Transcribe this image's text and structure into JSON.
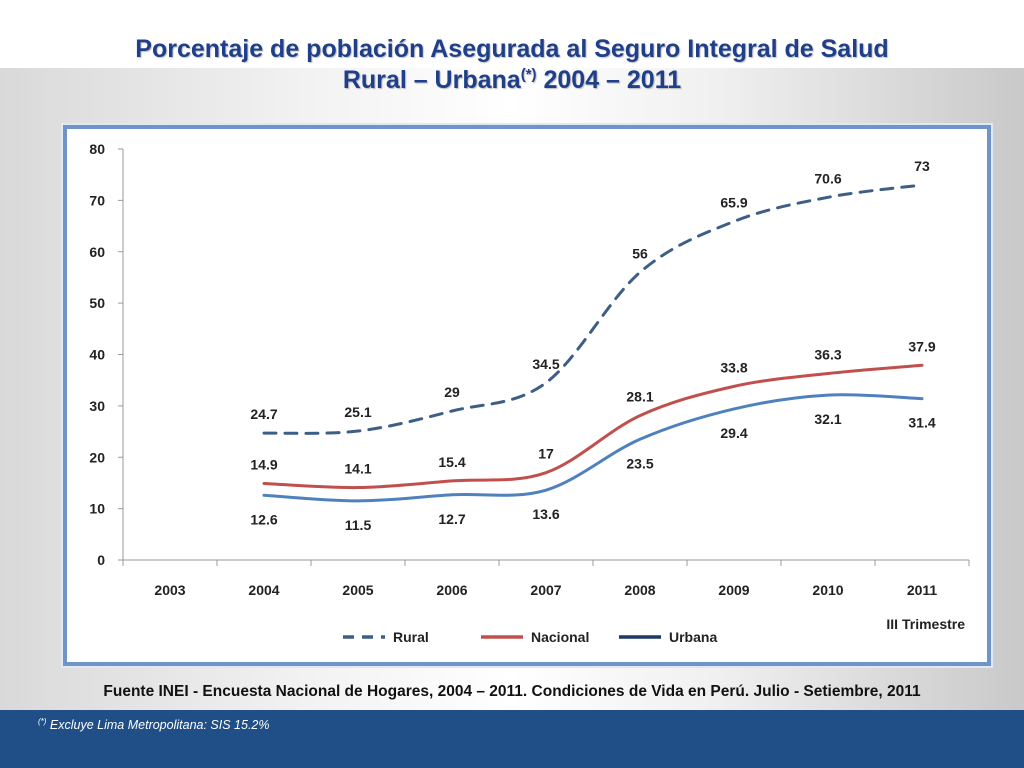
{
  "header": {
    "title_line1": "Porcentaje de población Asegurada al Seguro Integral de Salud",
    "title_line2_main": "Rural – Urbana",
    "title_line2_sup": "(*)",
    "title_line2_tail": " 2004 – 2011"
  },
  "source": "Fuente INEI - Encuesta Nacional de Hogares, 2004 – 2011. Condiciones de Vida en Perú. Julio - Setiembre, 2011",
  "footnote": {
    "marker": "(*)",
    "text": " Excluye Lima Metropolitana: SIS 15.2%"
  },
  "chart_data": {
    "type": "line",
    "title": "Porcentaje de población Asegurada al Seguro Integral de Salud Rural – Urbana (*) 2004 – 2011",
    "xlabel": "",
    "ylabel": "",
    "categories": [
      "2003",
      "2004",
      "2005",
      "2006",
      "2007",
      "2008",
      "2009",
      "2010",
      "2011"
    ],
    "ylim": [
      0,
      80
    ],
    "yticks": [
      0,
      10,
      20,
      30,
      40,
      50,
      60,
      70,
      80
    ],
    "grid": false,
    "note": "III Trimestre",
    "legend_position": "bottom",
    "series": [
      {
        "name": "Rural",
        "style": "dashed",
        "color": "#3d5f86",
        "label_position": "above",
        "values": [
          null,
          24.7,
          25.1,
          29,
          34.5,
          56,
          65.9,
          70.6,
          73
        ]
      },
      {
        "name": "Nacional",
        "style": "solid",
        "color": "#c0504d",
        "label_position": "above",
        "values": [
          null,
          14.9,
          14.1,
          15.4,
          17,
          28.1,
          33.8,
          36.3,
          37.9
        ]
      },
      {
        "name": "Urbana",
        "style": "solid",
        "color": "#4f81bd",
        "legend_color": "#1f3864",
        "label_position": "below",
        "values": [
          null,
          12.6,
          11.5,
          12.7,
          13.6,
          23.5,
          29.4,
          32.1,
          31.4
        ]
      }
    ]
  }
}
